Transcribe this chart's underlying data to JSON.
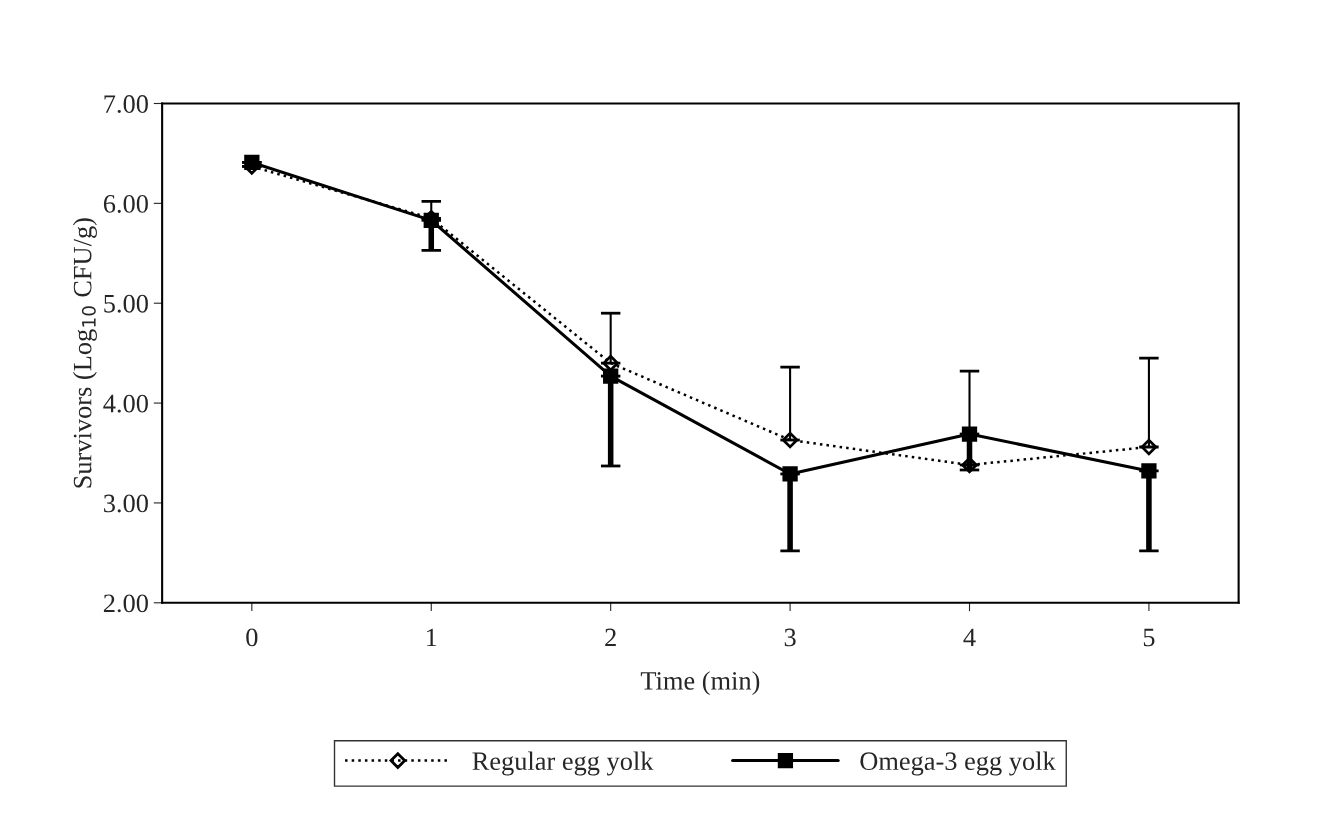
{
  "chart_data": {
    "type": "line",
    "xlabel": "Time (min)",
    "ylabel": "Survivors (Log$_{10}$ CFU/g)",
    "categories": [
      "0",
      "1",
      "2",
      "3",
      "4",
      "5"
    ],
    "ylim": [
      2,
      7
    ],
    "yticks": [
      {
        "value": 2,
        "label": "2.00"
      },
      {
        "value": 3,
        "label": "3.00"
      },
      {
        "value": 4,
        "label": "4.00"
      },
      {
        "value": 5,
        "label": "5.00"
      },
      {
        "value": 6,
        "label": "6.00"
      },
      {
        "value": 7,
        "label": "7.00"
      }
    ],
    "grid": false,
    "legend": "bottom",
    "series": [
      {
        "name": "Regular egg yolk",
        "color": "#000000",
        "marker": "diamond",
        "line_style": "dotted",
        "values": [
          6.37,
          5.85,
          4.4,
          3.63,
          3.38,
          3.56
        ],
        "errors": [
          null,
          [
            5.85,
            6.02
          ],
          [
            4.4,
            4.9
          ],
          [
            3.63,
            4.36
          ],
          [
            3.38,
            4.32
          ],
          [
            3.56,
            4.45
          ]
        ]
      },
      {
        "name": "Omega-3 egg yolk",
        "color": "#000000",
        "marker": "square",
        "line_style": "solid",
        "values": [
          6.41,
          5.83,
          4.27,
          3.29,
          3.69,
          3.32
        ],
        "errors": [
          null,
          [
            5.53,
            5.83
          ],
          [
            3.37,
            4.27
          ],
          [
            2.52,
            3.29
          ],
          [
            3.33,
            3.69
          ],
          [
            2.52,
            3.32
          ]
        ]
      }
    ]
  }
}
